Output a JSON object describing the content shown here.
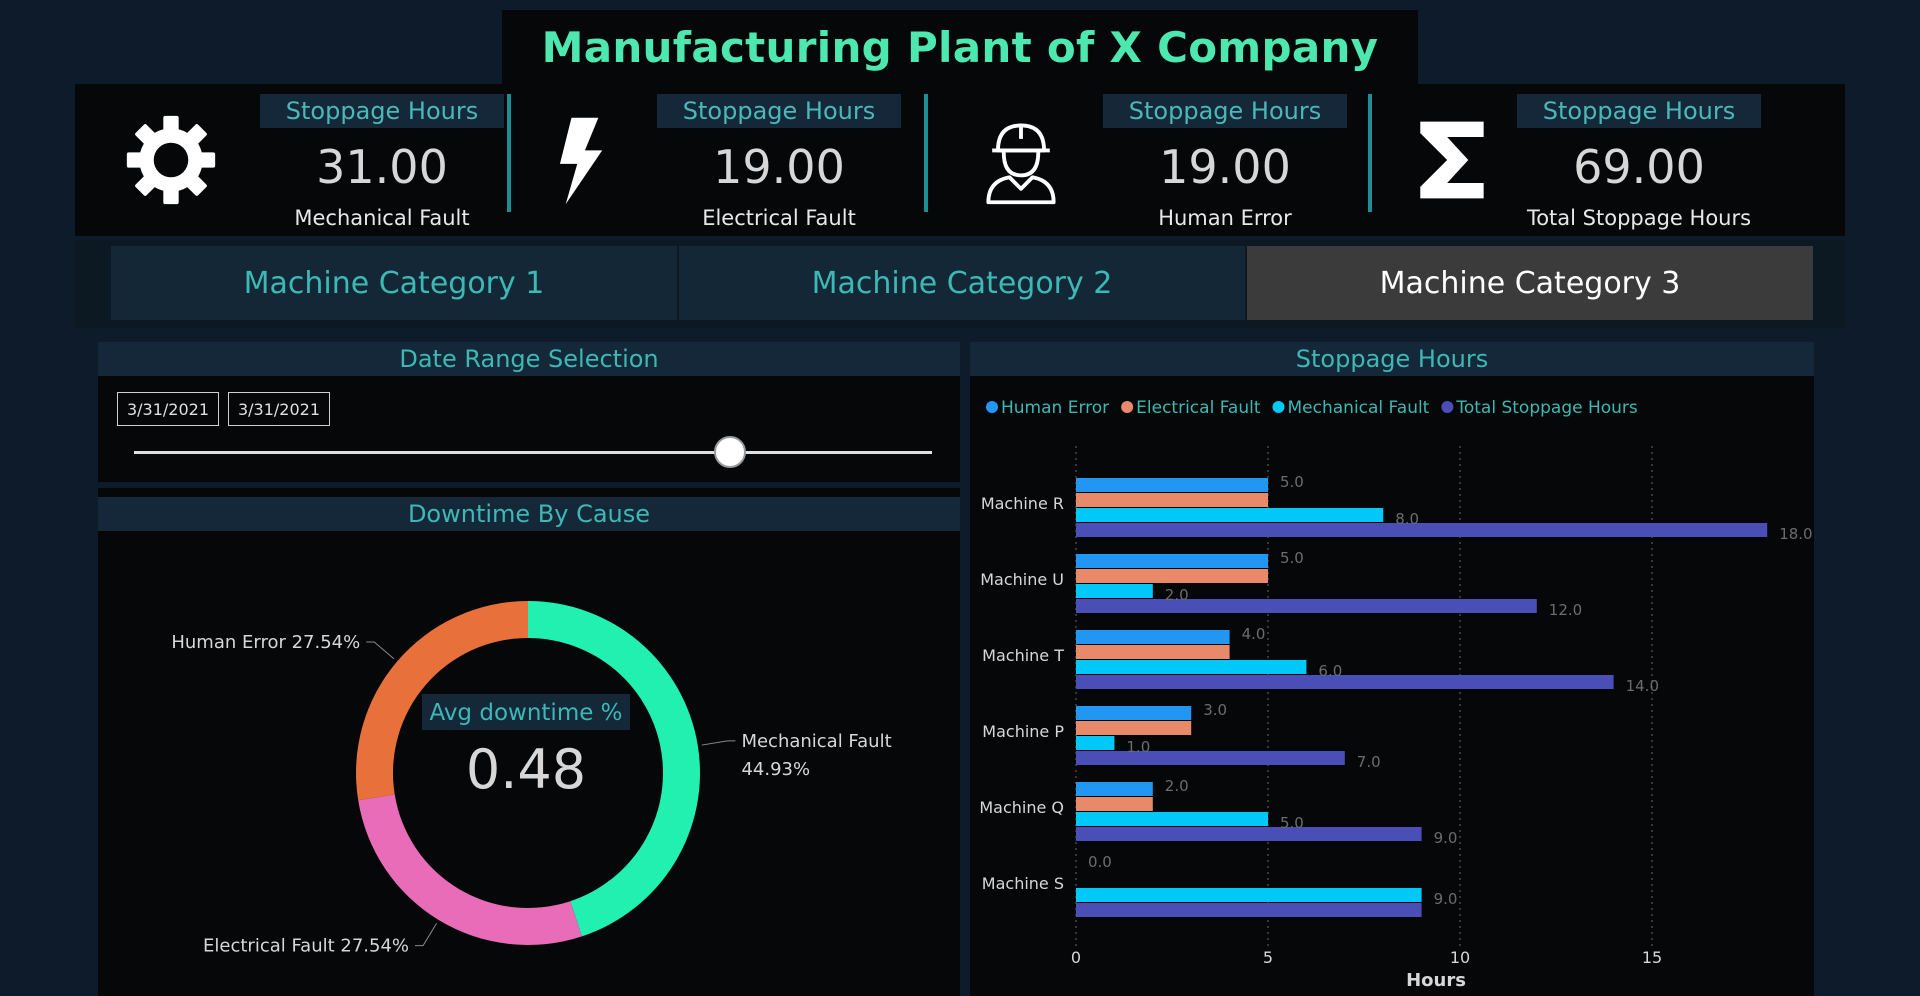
{
  "header": {
    "title": "Manufacturing Plant of X Company"
  },
  "kpis": [
    {
      "heading": "Stoppage Hours",
      "value": "31.00",
      "label": "Mechanical Fault",
      "icon": "gear-icon"
    },
    {
      "heading": "Stoppage Hours",
      "value": "19.00",
      "label": "Electrical Fault",
      "icon": "lightning-icon"
    },
    {
      "heading": "Stoppage Hours",
      "value": "19.00",
      "label": "Human Error",
      "icon": "worker-hardhat-icon"
    },
    {
      "heading": "Stoppage Hours",
      "value": "69.00",
      "label": "Total Stoppage Hours",
      "icon": "sigma-icon"
    }
  ],
  "tabs": [
    {
      "label": "Machine Category 1",
      "active": false
    },
    {
      "label": "Machine Category 2",
      "active": false
    },
    {
      "label": "Machine Category 3",
      "active": true
    }
  ],
  "date_range": {
    "title": "Date Range Selection",
    "start": "3/31/2021",
    "end": "3/31/2021",
    "slider_position": 0.75
  },
  "colors": {
    "accent": "#4de8b0",
    "human_error": "#2196f3",
    "electrical": "#e8896a",
    "mechanical": "#00c8f8",
    "total": "#4a4fb8",
    "donut_mechanical": "#22f0b0",
    "donut_human": "#e8703a",
    "donut_electrical": "#e96cb9"
  },
  "chart_data": [
    {
      "type": "pie",
      "title": "Downtime By Cause",
      "center_label": "Avg downtime %",
      "center_value": "0.48",
      "slices": [
        {
          "name": "Mechanical Fault",
          "value": 44.93,
          "label_line1": "Mechanical Fault",
          "label_line2": "44.93%"
        },
        {
          "name": "Electrical Fault",
          "value": 27.54,
          "label_line1": "Electrical Fault 27.54%"
        },
        {
          "name": "Human Error",
          "value": 27.54,
          "label_line1": "Human Error 27.54%"
        }
      ]
    },
    {
      "type": "bar",
      "orientation": "horizontal",
      "title": "Stoppage Hours",
      "xlabel": "Hours",
      "ylabel": "",
      "xlim": [
        0,
        18
      ],
      "x_ticks": [
        0,
        5,
        10,
        15
      ],
      "categories": [
        "Machine R",
        "Machine U",
        "Machine T",
        "Machine P",
        "Machine Q",
        "Machine S"
      ],
      "legend_position": "top-left",
      "series": [
        {
          "name": "Human Error",
          "values": [
            5,
            5,
            4,
            3,
            2,
            0
          ]
        },
        {
          "name": "Electrical Fault",
          "values": [
            5,
            5,
            4,
            3,
            2,
            0
          ]
        },
        {
          "name": "Mechanical Fault",
          "values": [
            8,
            2,
            6,
            1,
            5,
            9
          ]
        },
        {
          "name": "Total Stoppage Hours",
          "values": [
            18,
            12,
            14,
            7,
            9,
            9
          ]
        }
      ],
      "data_labels": [
        [
          "5.0",
          "8.0",
          "18.0"
        ],
        [
          "5.0",
          "2.0",
          "12.0"
        ],
        [
          "4.0",
          "6.0",
          "14.0"
        ],
        [
          "3.0",
          "1.0",
          "7.0"
        ],
        [
          "2.0",
          "5.0",
          "9.0"
        ],
        [
          "0.0",
          "9.0",
          ""
        ]
      ]
    }
  ]
}
